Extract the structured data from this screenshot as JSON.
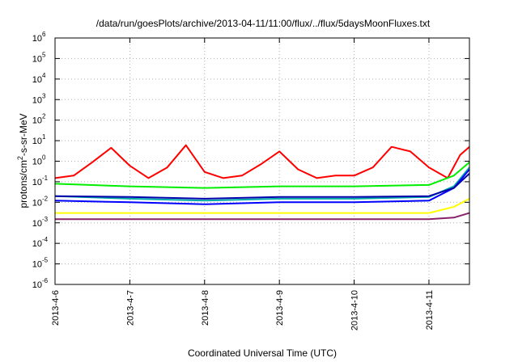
{
  "chart_data": {
    "type": "line",
    "title": "/data/run/goesPlots/archive/2013-04-11/11:00/flux/../flux/5daysMoonFluxes.txt",
    "xlabel": "Coordinated Universal Time (UTC)",
    "ylabel": {
      "prefix": "protons/cm",
      "sup": "2",
      "suffix": "-s-sr-MeV"
    },
    "yscale": "log",
    "ylim": [
      1e-06,
      1000000.0
    ],
    "xlim": [
      "2013-04-06 00:00",
      "2013-04-11 13:00"
    ],
    "grid": true,
    "x_ticks": [
      "2013-4-6",
      "2013-4-7",
      "2013-4-8",
      "2013-4-9",
      "2013-4-10",
      "2013-4-11"
    ],
    "y_ticks": [
      {
        "base": "10",
        "exp": "-6"
      },
      {
        "base": "10",
        "exp": "-5"
      },
      {
        "base": "10",
        "exp": "-4"
      },
      {
        "base": "10",
        "exp": "-3"
      },
      {
        "base": "10",
        "exp": "-2"
      },
      {
        "base": "10",
        "exp": "-1"
      },
      {
        "base": "10",
        "exp": "0"
      },
      {
        "base": "10",
        "exp": "1"
      },
      {
        "base": "10",
        "exp": "2"
      },
      {
        "base": "10",
        "exp": "3"
      },
      {
        "base": "10",
        "exp": "4"
      },
      {
        "base": "10",
        "exp": "5"
      },
      {
        "base": "10",
        "exp": "6"
      }
    ],
    "series": [
      {
        "color": "#ff0000",
        "x": [
          "2013-04-06 00:00",
          "2013-04-06 06:00",
          "2013-04-06 12:00",
          "2013-04-06 18:00",
          "2013-04-07 00:00",
          "2013-04-07 06:00",
          "2013-04-07 12:00",
          "2013-04-07 18:00",
          "2013-04-08 00:00",
          "2013-04-08 06:00",
          "2013-04-08 12:00",
          "2013-04-08 18:00",
          "2013-04-09 00:00",
          "2013-04-09 06:00",
          "2013-04-09 12:00",
          "2013-04-09 18:00",
          "2013-04-10 00:00",
          "2013-04-10 06:00",
          "2013-04-10 12:00",
          "2013-04-10 18:00",
          "2013-04-11 00:00",
          "2013-04-11 06:00",
          "2013-04-11 10:00",
          "2013-04-11 13:00"
        ],
        "y": [
          0.15,
          0.2,
          0.9,
          4.5,
          0.6,
          0.15,
          0.5,
          6,
          0.3,
          0.15,
          0.2,
          0.7,
          3,
          0.4,
          0.15,
          0.2,
          0.2,
          0.5,
          5,
          3,
          0.5,
          0.15,
          2,
          5
        ]
      },
      {
        "color": "#00ee00",
        "x": [
          "2013-04-06 00:00",
          "2013-04-07 00:00",
          "2013-04-08 00:00",
          "2013-04-09 00:00",
          "2013-04-10 00:00",
          "2013-04-11 00:00",
          "2013-04-11 08:00",
          "2013-04-11 13:00"
        ],
        "y": [
          0.08,
          0.06,
          0.05,
          0.06,
          0.06,
          0.07,
          0.2,
          0.9
        ]
      },
      {
        "color": "#00aaaa",
        "x": [
          "2013-04-06 00:00",
          "2013-04-07 00:00",
          "2013-04-08 00:00",
          "2013-04-09 00:00",
          "2013-04-10 00:00",
          "2013-04-11 00:00",
          "2013-04-11 08:00",
          "2013-04-11 13:00"
        ],
        "y": [
          0.02,
          0.015,
          0.012,
          0.015,
          0.015,
          0.018,
          0.06,
          0.5
        ]
      },
      {
        "color": "#0000ff",
        "x": [
          "2013-04-06 00:00",
          "2013-04-07 00:00",
          "2013-04-08 00:00",
          "2013-04-09 00:00",
          "2013-04-10 00:00",
          "2013-04-11 00:00",
          "2013-04-11 08:00",
          "2013-04-11 13:00"
        ],
        "y": [
          0.012,
          0.01,
          0.008,
          0.01,
          0.01,
          0.012,
          0.05,
          0.4
        ]
      },
      {
        "color": "#0000aa",
        "x": [
          "2013-04-06 00:00",
          "2013-04-07 00:00",
          "2013-04-08 00:00",
          "2013-04-09 00:00",
          "2013-04-10 00:00",
          "2013-04-11 00:00",
          "2013-04-11 08:00",
          "2013-04-11 13:00"
        ],
        "y": [
          0.02,
          0.018,
          0.015,
          0.018,
          0.018,
          0.02,
          0.05,
          0.25
        ]
      },
      {
        "color": "#ffff00",
        "x": [
          "2013-04-06 00:00",
          "2013-04-07 00:00",
          "2013-04-08 00:00",
          "2013-04-09 00:00",
          "2013-04-10 00:00",
          "2013-04-11 00:00",
          "2013-04-11 08:00",
          "2013-04-11 13:00"
        ],
        "y": [
          0.003,
          0.003,
          0.003,
          0.003,
          0.003,
          0.003,
          0.006,
          0.015
        ]
      },
      {
        "color": "#882266",
        "x": [
          "2013-04-06 00:00",
          "2013-04-07 00:00",
          "2013-04-08 00:00",
          "2013-04-09 00:00",
          "2013-04-10 00:00",
          "2013-04-11 00:00",
          "2013-04-11 08:00",
          "2013-04-11 13:00"
        ],
        "y": [
          0.0015,
          0.0015,
          0.0015,
          0.0015,
          0.0015,
          0.0015,
          0.0018,
          0.003
        ]
      }
    ]
  }
}
